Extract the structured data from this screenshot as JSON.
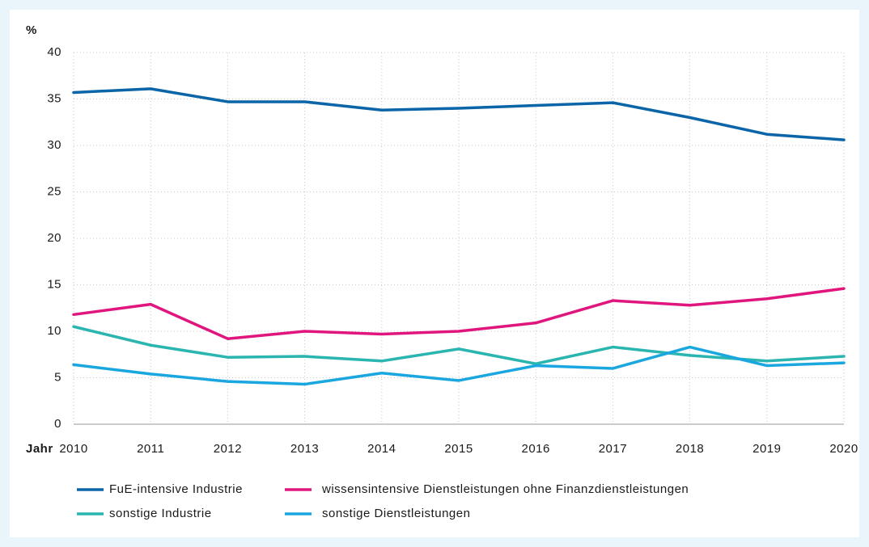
{
  "chart_data": {
    "type": "line",
    "y_label": "%",
    "x_label": "Jahr",
    "x": [
      2010,
      2011,
      2012,
      2013,
      2014,
      2015,
      2016,
      2017,
      2018,
      2019,
      2020
    ],
    "xlim": [
      2010,
      2020
    ],
    "xticks": [
      2010,
      2011,
      2012,
      2013,
      2014,
      2015,
      2016,
      2017,
      2018,
      2019,
      2020
    ],
    "ylim": [
      0,
      40
    ],
    "yticks": [
      0,
      5,
      10,
      15,
      20,
      25,
      30,
      35,
      40
    ],
    "grid": true,
    "legend": "bottom",
    "series": [
      {
        "name": "FuE-intensive Industrie",
        "color": "#0a64a8",
        "values": [
          35.7,
          36.1,
          34.7,
          34.7,
          33.8,
          34.0,
          34.3,
          34.6,
          33.0,
          31.2,
          30.6
        ]
      },
      {
        "name": "wissensintensive Dienstleistungen ohne Finanzdienstleistungen",
        "color": "#e0167e",
        "values": [
          11.8,
          12.9,
          9.2,
          10.0,
          9.7,
          10.0,
          10.9,
          13.3,
          12.8,
          13.5,
          14.6
        ]
      },
      {
        "name": "sonstige Industrie",
        "color": "#2bb5b0",
        "values": [
          10.5,
          8.5,
          7.2,
          7.3,
          6.8,
          8.1,
          6.5,
          8.3,
          7.4,
          6.8,
          7.3
        ]
      },
      {
        "name": "sonstige Dienstleistungen",
        "color": "#1aa7e0",
        "values": [
          6.4,
          5.4,
          4.6,
          4.3,
          5.5,
          4.7,
          6.3,
          6.0,
          8.3,
          6.3,
          6.6
        ]
      }
    ]
  }
}
